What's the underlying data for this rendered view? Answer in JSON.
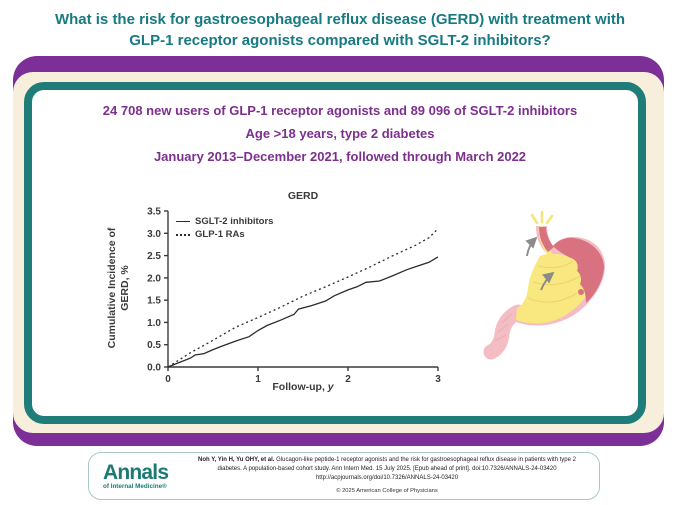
{
  "colors": {
    "teal_accent": "#177a81",
    "teal_border": "#1e7c79",
    "purple_panel": "#7c2f96",
    "purple_text": "#7d2f8e",
    "cream_panel": "#f7eedb",
    "chart_ink": "#3a3a3a",
    "logo_teal": "#1b7a74",
    "stomach_pink": "#f4bdc4",
    "stomach_dark_pink": "#d97280",
    "acid_yellow": "#f9e87f",
    "arrow_gray": "#8b8b8b"
  },
  "header": {
    "title": "What is the risk for gastroesophageal reflux disease (GERD) with treatment with GLP-1 receptor agonists compared with SGLT-2 inhibitors?"
  },
  "study": {
    "line1": "24 708 new users of GLP-1 receptor agonists and 89 096 of SGLT-2 inhibitors",
    "line2": "Age >18 years, type 2 diabetes",
    "line3": "January 2013–December 2021, followed through March 2022"
  },
  "chart_data": {
    "type": "line",
    "title": "GERD",
    "xlabel": "Follow-up, y",
    "xlabel_main": "Follow-up, ",
    "xlabel_unit": "y",
    "ylabel": "Cumulative Incidence of GERD, %",
    "ylabel_lines": [
      "Cumulative Incidence of",
      "GERD, %"
    ],
    "xlim": [
      0,
      3
    ],
    "ylim": [
      0,
      3.5
    ],
    "xticks": [
      "0",
      "1",
      "2",
      "3"
    ],
    "yticks": [
      "0.0",
      "0.5",
      "1.0",
      "1.5",
      "2.0",
      "2.5",
      "3.0",
      "3.5"
    ],
    "grid": false,
    "legend_position": "top-left",
    "series": [
      {
        "name": "SGLT-2 inhibitors",
        "style": "solid",
        "x": [
          0,
          0.1,
          0.25,
          0.3,
          0.4,
          0.5,
          0.6,
          0.75,
          0.9,
          1.0,
          1.1,
          1.25,
          1.4,
          1.45,
          1.6,
          1.75,
          1.85,
          2.0,
          2.1,
          2.2,
          2.35,
          2.5,
          2.65,
          2.75,
          2.9,
          3.0
        ],
        "values": [
          0,
          0.08,
          0.2,
          0.27,
          0.3,
          0.39,
          0.47,
          0.58,
          0.68,
          0.82,
          0.93,
          1.05,
          1.18,
          1.3,
          1.38,
          1.48,
          1.6,
          1.73,
          1.8,
          1.9,
          1.93,
          2.05,
          2.18,
          2.25,
          2.35,
          2.47
        ]
      },
      {
        "name": "GLP-1 RAs",
        "style": "dashed",
        "x": [
          0,
          0.25,
          0.5,
          0.75,
          1.0,
          1.25,
          1.5,
          1.75,
          2.0,
          2.25,
          2.5,
          2.75,
          2.9,
          3.0
        ],
        "values": [
          0,
          0.32,
          0.6,
          0.89,
          1.11,
          1.34,
          1.59,
          1.8,
          2.02,
          2.25,
          2.5,
          2.73,
          2.9,
          3.1
        ]
      }
    ]
  },
  "illustration": {
    "icon": "stomach-reflux-icon"
  },
  "footer": {
    "logo_line1": "Annals",
    "logo_line2": "of Internal Medicine®",
    "citation_lead": "Noh Y, Yin H, Yu OHY, et al.",
    "citation_body": " Glucagon-like peptide-1 receptor agonists and the risk for gastroesophageal reflux disease in patients with type 2 diabetes. A population-based cohort study. Ann Intern Med. 15 July 2025. [Epub ahead of print]. doi:10.7326/ANNALS-24-03420",
    "citation_link": "http://acpjournals.org/doi/10.7326/ANNALS-24-03420",
    "copyright": "© 2025 American College of Physicians"
  }
}
